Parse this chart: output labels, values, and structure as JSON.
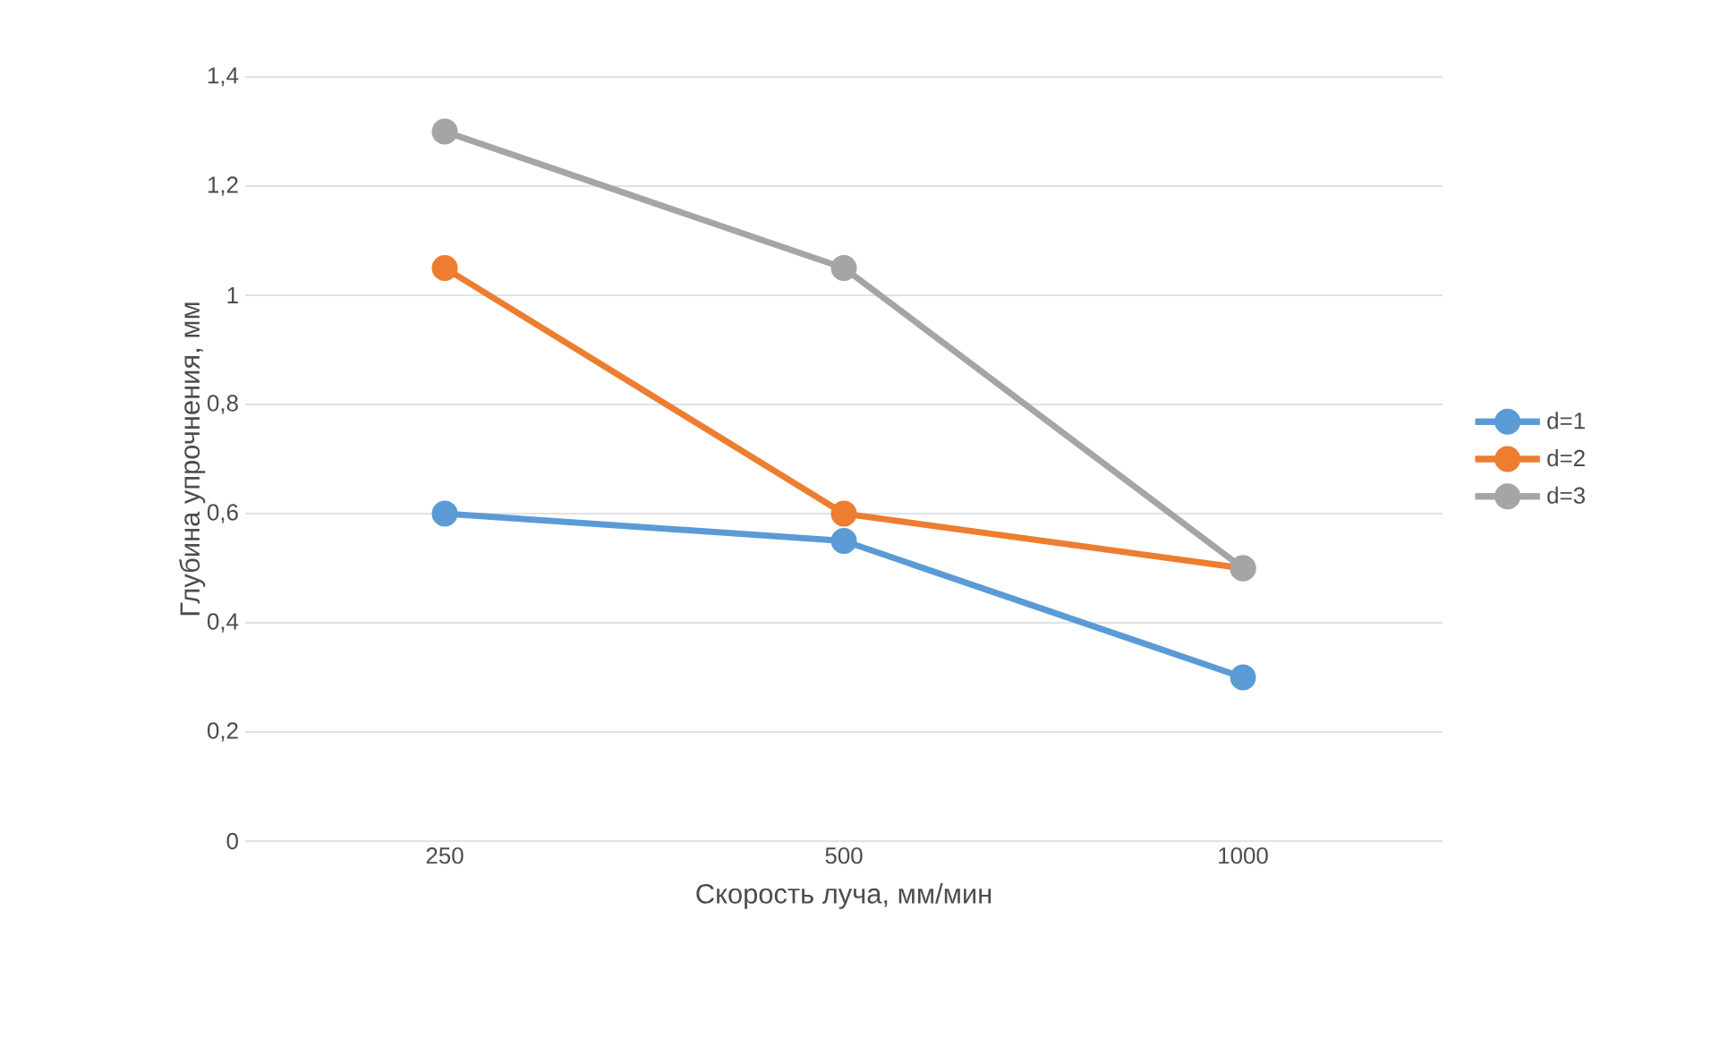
{
  "chart_data": {
    "type": "line",
    "xlabel": "Скорость луча, мм/мин",
    "ylabel": "Глубина упрочнения, мм",
    "categories": [
      "250",
      "500",
      "1000"
    ],
    "series": [
      {
        "name": "d=1",
        "color": "#5b9bd5",
        "values": [
          0.6,
          0.55,
          0.3
        ]
      },
      {
        "name": "d=2",
        "color": "#ed7d31",
        "values": [
          1.05,
          0.6,
          0.5
        ]
      },
      {
        "name": "d=3",
        "color": "#a5a5a5",
        "values": [
          1.3,
          1.05,
          0.5
        ]
      }
    ],
    "ylim": [
      0,
      1.4
    ],
    "yticks": [
      0,
      {
        "value": 0.2,
        "label": "0,2"
      },
      {
        "value": 0.4,
        "label": "0,4"
      },
      {
        "value": 0.6,
        "label": "0,6"
      },
      {
        "value": 0.8,
        "label": "0,8"
      },
      1,
      {
        "value": 1.2,
        "label": "1,2"
      },
      {
        "value": 1.4,
        "label": "1,4"
      }
    ],
    "grid": "y",
    "legend": "right",
    "marker": "circle",
    "line_style": "solid"
  }
}
